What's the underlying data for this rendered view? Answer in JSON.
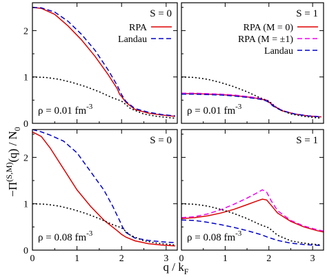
{
  "figure": {
    "ylabel_main": "−Π",
    "ylabel_sup": "(S,M)",
    "ylabel_tail": "(q) / N",
    "ylabel_sub": "0",
    "xlabel_main": "q / k",
    "xlabel_sub": "F"
  },
  "colors": {
    "rpa": "#dd0000",
    "rpa_pm1": "#ee00ee",
    "landau": "#0000cc",
    "free": "#000000"
  },
  "chart_data": [
    {
      "type": "line",
      "panel": "top-left",
      "title": "S = 0",
      "annotation": {
        "prefix": "ρ = 0.01 fm",
        "sup": "-3"
      },
      "xlim": [
        0,
        3.25
      ],
      "ylim": [
        0,
        2.6
      ],
      "xticks": [
        0,
        1,
        2,
        3
      ],
      "yticks": [
        0,
        1,
        2
      ],
      "xtick_labels": [
        "",
        "",
        "",
        ""
      ],
      "ytick_labels": [
        "0",
        "1",
        "2"
      ],
      "legend": "top-right",
      "series": [
        {
          "name": "RPA",
          "style": "solid",
          "color": "#dd0000",
          "x": [
            0,
            0.2,
            0.5,
            0.8,
            1.1,
            1.4,
            1.7,
            1.9,
            1.96,
            2.0,
            2.1,
            2.3,
            2.6,
            2.9,
            3.2
          ],
          "y": [
            2.5,
            2.48,
            2.35,
            2.1,
            1.8,
            1.45,
            1.05,
            0.75,
            0.62,
            0.58,
            0.45,
            0.3,
            0.22,
            0.18,
            0.15
          ]
        },
        {
          "name": "Landau",
          "style": "dashed",
          "color": "#0000cc",
          "x": [
            0,
            0.2,
            0.5,
            0.8,
            1.1,
            1.4,
            1.7,
            1.9,
            1.97,
            2.0,
            2.1,
            2.3,
            2.6,
            2.9,
            3.2
          ],
          "y": [
            2.5,
            2.49,
            2.4,
            2.2,
            1.92,
            1.58,
            1.15,
            0.82,
            0.68,
            0.62,
            0.47,
            0.32,
            0.24,
            0.19,
            0.16
          ]
        },
        {
          "name": "",
          "style": "dotted",
          "color": "#000000",
          "x": [
            0,
            0.3,
            0.6,
            0.9,
            1.2,
            1.5,
            1.8,
            2.0,
            2.2,
            2.5,
            2.8,
            3.2
          ],
          "y": [
            1.0,
            0.99,
            0.95,
            0.88,
            0.79,
            0.68,
            0.55,
            0.48,
            0.32,
            0.2,
            0.15,
            0.11
          ]
        }
      ]
    },
    {
      "type": "line",
      "panel": "top-right",
      "title": "S = 1",
      "annotation": {
        "prefix": "ρ = 0.01 fm",
        "sup": "-3"
      },
      "xlim": [
        0,
        3.25
      ],
      "ylim": [
        0,
        2.6
      ],
      "xticks": [
        0,
        1,
        2,
        3
      ],
      "yticks": [
        0,
        1,
        2
      ],
      "xtick_labels": [
        "",
        "",
        "",
        ""
      ],
      "ytick_labels": [
        "",
        "",
        ""
      ],
      "legend": "top-right",
      "series": [
        {
          "name": "RPA (M = 0)",
          "style": "solid",
          "color": "#dd0000",
          "x": [
            0,
            0.3,
            0.6,
            0.9,
            1.2,
            1.5,
            1.8,
            1.95,
            2.0,
            2.1,
            2.3,
            2.6,
            2.9,
            3.2
          ],
          "y": [
            0.64,
            0.64,
            0.63,
            0.62,
            0.6,
            0.57,
            0.53,
            0.49,
            0.46,
            0.38,
            0.27,
            0.2,
            0.16,
            0.14
          ]
        },
        {
          "name": "RPA (M = ±1)",
          "style": "dashed",
          "color": "#ee00ee",
          "x": [
            0,
            0.3,
            0.6,
            0.9,
            1.2,
            1.5,
            1.8,
            1.95,
            2.0,
            2.1,
            2.3,
            2.6,
            2.9,
            3.2
          ],
          "y": [
            0.65,
            0.65,
            0.64,
            0.63,
            0.61,
            0.58,
            0.54,
            0.5,
            0.47,
            0.39,
            0.28,
            0.2,
            0.16,
            0.14
          ]
        },
        {
          "name": "Landau",
          "style": "dashed",
          "color": "#0000cc",
          "x": [
            0,
            0.3,
            0.6,
            0.9,
            1.2,
            1.5,
            1.8,
            1.95,
            2.0,
            2.1,
            2.3,
            2.6,
            2.9,
            3.2
          ],
          "y": [
            0.63,
            0.63,
            0.62,
            0.61,
            0.59,
            0.56,
            0.52,
            0.48,
            0.45,
            0.37,
            0.27,
            0.2,
            0.16,
            0.14
          ]
        },
        {
          "name": "",
          "style": "dotted",
          "color": "#000000",
          "x": [
            0,
            0.3,
            0.6,
            0.9,
            1.2,
            1.5,
            1.8,
            2.0,
            2.2,
            2.5,
            2.8,
            3.2
          ],
          "y": [
            1.0,
            0.99,
            0.95,
            0.88,
            0.79,
            0.68,
            0.55,
            0.48,
            0.32,
            0.2,
            0.15,
            0.11
          ]
        }
      ]
    },
    {
      "type": "line",
      "panel": "bottom-left",
      "title": "S = 0",
      "annotation": {
        "prefix": "ρ = 0.08 fm",
        "sup": "-3"
      },
      "xlim": [
        0,
        3.25
      ],
      "ylim": [
        0,
        2.6
      ],
      "xticks": [
        0,
        1,
        2,
        3
      ],
      "yticks": [
        0,
        1,
        2
      ],
      "xtick_labels": [
        "0",
        "1",
        "2",
        "3"
      ],
      "ytick_labels": [
        "0",
        "1",
        "2"
      ],
      "legend": "none",
      "series": [
        {
          "name": "RPA",
          "style": "solid",
          "color": "#dd0000",
          "x": [
            0,
            0.2,
            0.4,
            0.7,
            1.0,
            1.3,
            1.6,
            1.9,
            2.0,
            2.1,
            2.3,
            2.6,
            2.9,
            3.2
          ],
          "y": [
            2.55,
            2.45,
            2.2,
            1.75,
            1.3,
            0.95,
            0.65,
            0.42,
            0.34,
            0.28,
            0.2,
            0.14,
            0.11,
            0.09
          ]
        },
        {
          "name": "Landau",
          "style": "dashed",
          "color": "#0000cc",
          "x": [
            0,
            0.2,
            0.4,
            0.7,
            1.0,
            1.3,
            1.6,
            1.8,
            1.95,
            2.02,
            2.1,
            2.3,
            2.6,
            2.9,
            3.2
          ],
          "y": [
            2.6,
            2.55,
            2.48,
            2.35,
            2.1,
            1.7,
            1.3,
            0.95,
            0.65,
            0.5,
            0.38,
            0.26,
            0.21,
            0.18,
            0.16
          ]
        },
        {
          "name": "",
          "style": "dotted",
          "color": "#000000",
          "x": [
            0,
            0.3,
            0.6,
            0.9,
            1.2,
            1.5,
            1.8,
            2.0,
            2.2,
            2.5,
            2.8,
            3.2
          ],
          "y": [
            1.0,
            0.99,
            0.95,
            0.88,
            0.79,
            0.68,
            0.55,
            0.48,
            0.32,
            0.2,
            0.15,
            0.11
          ]
        }
      ]
    },
    {
      "type": "line",
      "panel": "bottom-right",
      "title": "S = 1",
      "annotation": {
        "prefix": "ρ = 0.08 fm",
        "sup": "-3"
      },
      "xlim": [
        0,
        3.25
      ],
      "ylim": [
        0,
        2.6
      ],
      "xticks": [
        0,
        1,
        2,
        3
      ],
      "yticks": [
        0,
        1,
        2
      ],
      "xtick_labels": [
        "0",
        "1",
        "2",
        "3"
      ],
      "ytick_labels": [
        "",
        "",
        ""
      ],
      "legend": "none",
      "series": [
        {
          "name": "RPA (M = 0)",
          "style": "solid",
          "color": "#dd0000",
          "x": [
            0,
            0.3,
            0.6,
            0.9,
            1.2,
            1.5,
            1.7,
            1.85,
            1.95,
            2.05,
            2.2,
            2.5,
            2.8,
            3.1,
            3.25
          ],
          "y": [
            0.68,
            0.7,
            0.74,
            0.8,
            0.88,
            0.98,
            1.05,
            1.1,
            1.08,
            0.97,
            0.8,
            0.62,
            0.5,
            0.42,
            0.39
          ]
        },
        {
          "name": "RPA (M = ±1)",
          "style": "dashed",
          "color": "#ee00ee",
          "x": [
            0,
            0.3,
            0.6,
            0.9,
            1.2,
            1.5,
            1.7,
            1.85,
            1.95,
            2.05,
            2.2,
            2.5,
            2.8,
            3.1,
            3.25
          ],
          "y": [
            0.7,
            0.72,
            0.78,
            0.87,
            0.99,
            1.12,
            1.22,
            1.3,
            1.25,
            1.07,
            0.85,
            0.64,
            0.52,
            0.44,
            0.41
          ]
        },
        {
          "name": "Landau",
          "style": "dashed",
          "color": "#0000cc",
          "x": [
            0,
            0.3,
            0.6,
            0.9,
            1.2,
            1.5,
            1.8,
            2.0,
            2.2,
            2.5,
            2.8,
            3.2
          ],
          "y": [
            0.65,
            0.64,
            0.6,
            0.55,
            0.49,
            0.42,
            0.34,
            0.27,
            0.21,
            0.15,
            0.12,
            0.1
          ]
        },
        {
          "name": "",
          "style": "dotted",
          "color": "#000000",
          "x": [
            0,
            0.3,
            0.6,
            0.9,
            1.2,
            1.5,
            1.8,
            2.0,
            2.2,
            2.5,
            2.8,
            3.2
          ],
          "y": [
            1.0,
            0.99,
            0.95,
            0.88,
            0.79,
            0.68,
            0.55,
            0.48,
            0.32,
            0.2,
            0.15,
            0.11
          ]
        }
      ]
    }
  ]
}
